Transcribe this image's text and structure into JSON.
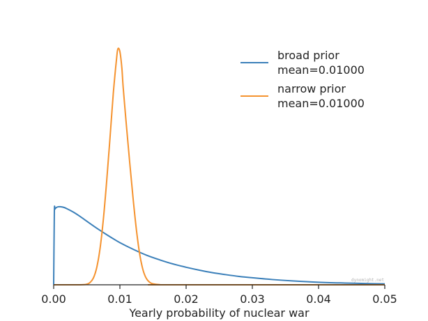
{
  "chart_data": {
    "type": "line",
    "title": "",
    "xlabel": "Yearly probability of nuclear war",
    "ylabel": "",
    "xlim": [
      0.0,
      0.05
    ],
    "ylim": [
      0,
      130
    ],
    "x_ticks": [
      "0.00",
      "0.01",
      "0.02",
      "0.03",
      "0.04",
      "0.05"
    ],
    "legend_position": "top-right",
    "watermark": "dynomight.net",
    "series": [
      {
        "name": "broad prior",
        "legend_label_line1": "broad prior",
        "legend_label_line2": "mean=0.01000",
        "color": "#3a7fb9",
        "x": [
          0.0,
          0.0001,
          0.0002,
          0.0004,
          0.0007,
          0.001,
          0.0015,
          0.002,
          0.003,
          0.004,
          0.005,
          0.006,
          0.007,
          0.008,
          0.009,
          0.01,
          0.012,
          0.014,
          0.016,
          0.018,
          0.02,
          0.022,
          0.024,
          0.026,
          0.028,
          0.03,
          0.033,
          0.036,
          0.04,
          0.044,
          0.048,
          0.05
        ],
        "y": [
          0,
          37,
          38.8,
          39.6,
          40,
          40,
          39.7,
          39.0,
          37.2,
          35.0,
          32.6,
          30.2,
          27.9,
          25.7,
          23.6,
          21.6,
          18.2,
          15.2,
          12.8,
          10.7,
          9.0,
          7.5,
          6.2,
          5.2,
          4.3,
          3.6,
          2.7,
          2.0,
          1.3,
          0.9,
          0.6,
          0.5
        ]
      },
      {
        "name": "narrow prior",
        "legend_label_line1": "narrow prior",
        "legend_label_line2": "mean=0.01000",
        "color": "#f5922e",
        "x": [
          0.0,
          0.004,
          0.005,
          0.0055,
          0.006,
          0.0065,
          0.007,
          0.0075,
          0.008,
          0.0085,
          0.009,
          0.0095,
          0.0097,
          0.01,
          0.0103,
          0.0105,
          0.011,
          0.0115,
          0.012,
          0.0125,
          0.013,
          0.0135,
          0.014,
          0.0145,
          0.015,
          0.016,
          0.017,
          0.05
        ],
        "y": [
          0,
          0,
          0.3,
          1.2,
          3.5,
          8.8,
          18.5,
          33.5,
          53,
          75,
          98,
          116,
          121,
          119.5,
          111,
          101,
          81,
          62,
          44,
          28,
          15.5,
          7.5,
          3.2,
          1.3,
          0.5,
          0.1,
          0,
          0
        ]
      }
    ]
  }
}
